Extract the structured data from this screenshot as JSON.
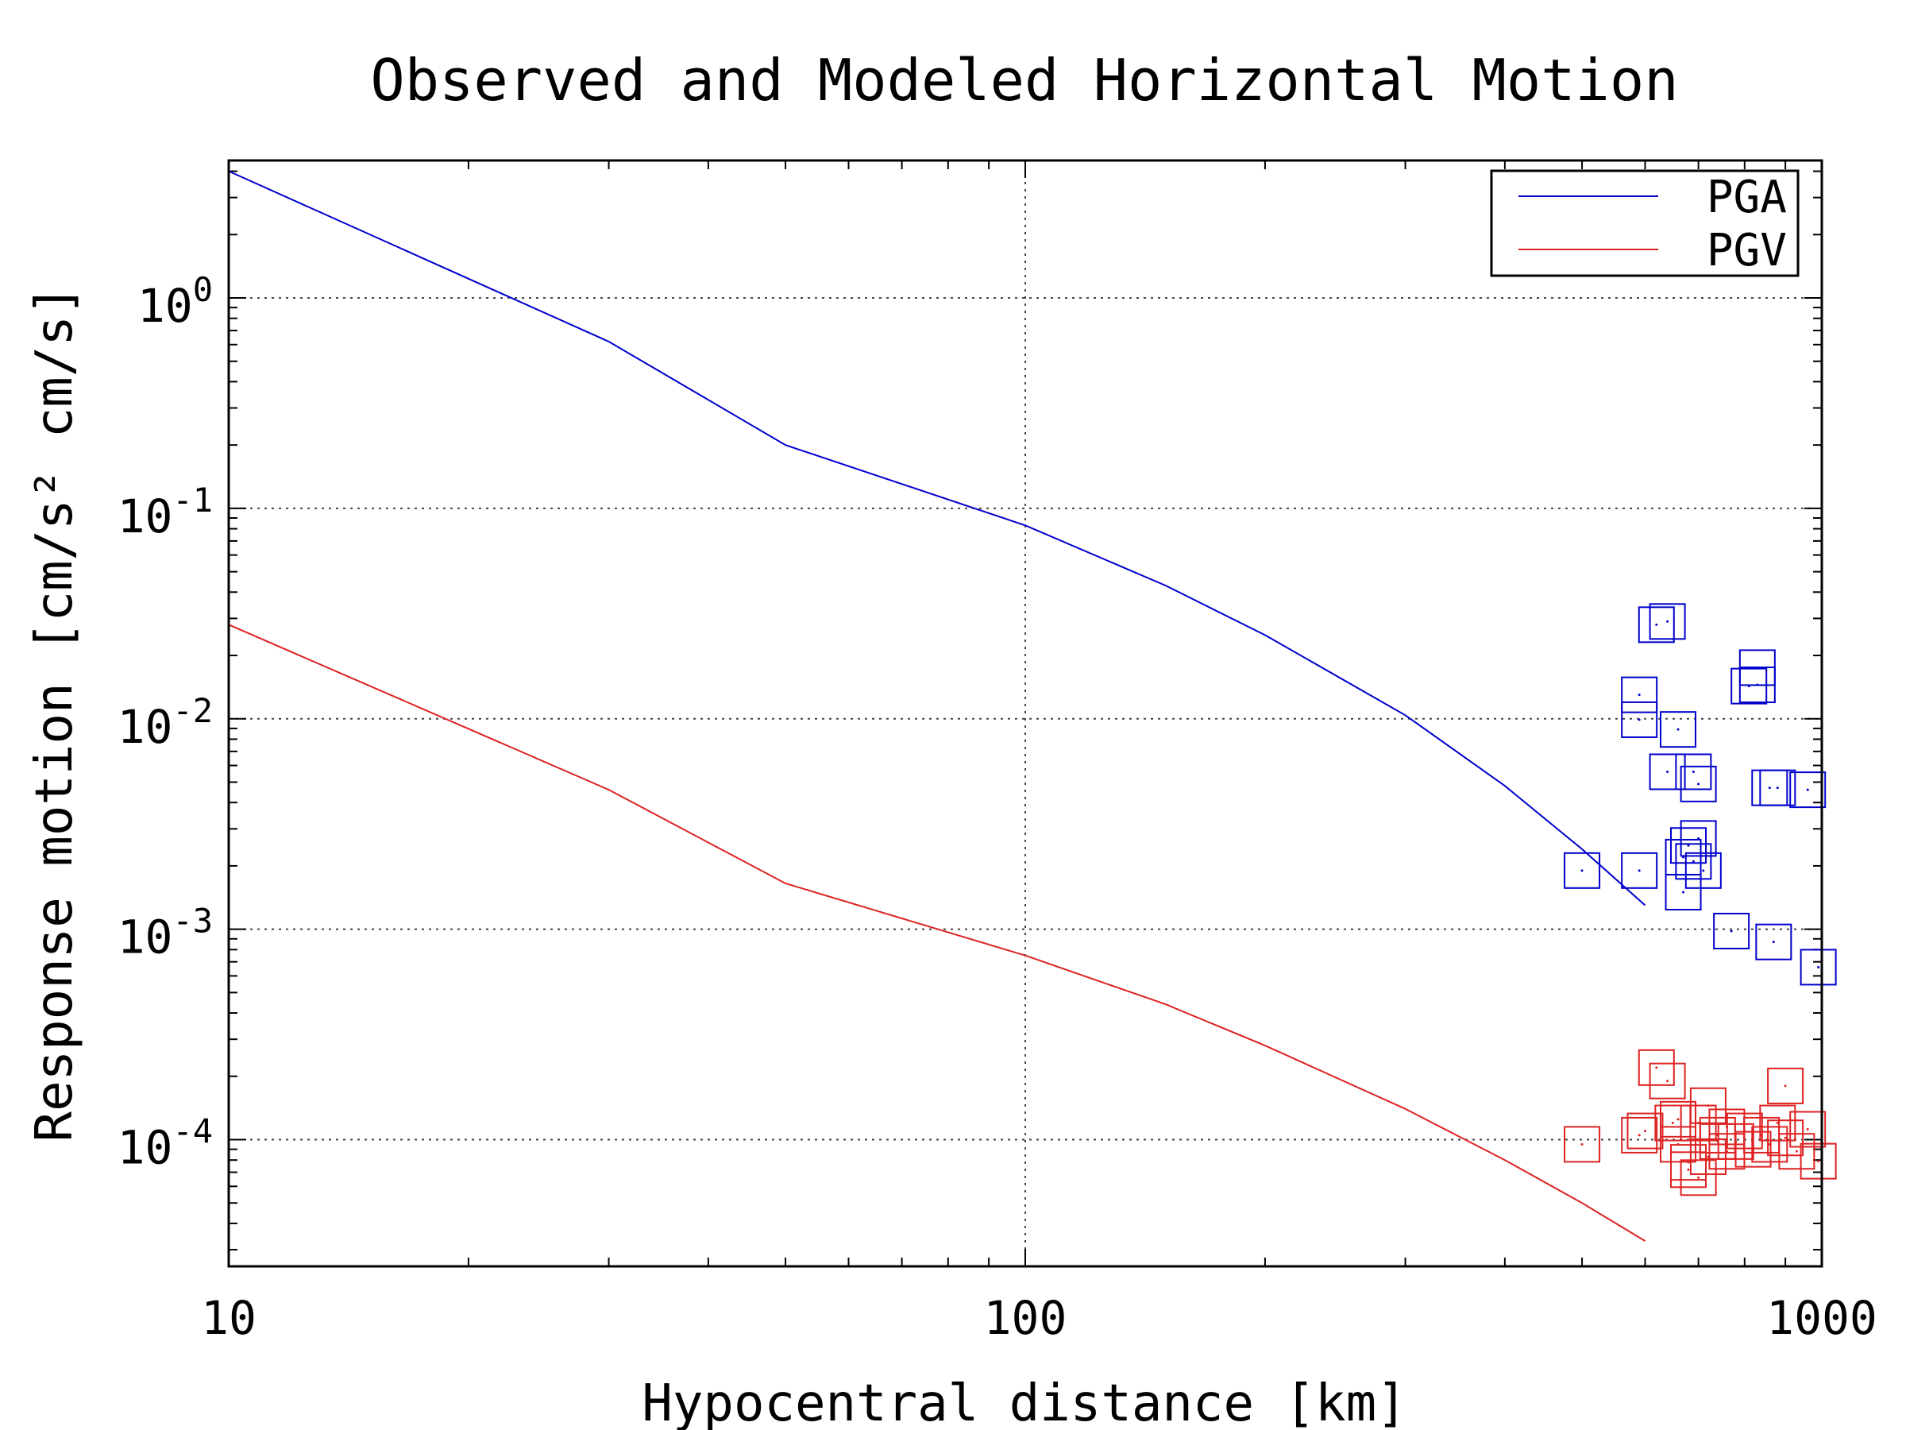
{
  "chart_data": {
    "type": "line",
    "title": "Observed and Modeled Horizontal Motion",
    "xlabel": "Hypocentral distance [km]",
    "ylabel": "Response motion [cm/s² cm/s]",
    "xscale": "log",
    "yscale": "log",
    "xlim": [
      10,
      1000
    ],
    "ylim": [
      2.5e-05,
      4.5
    ],
    "x_ticks": [
      {
        "value": 10,
        "label": "10"
      },
      {
        "value": 100,
        "label": "100"
      },
      {
        "value": 1000,
        "label": "1000"
      }
    ],
    "y_ticks": [
      {
        "value": 1,
        "exp": "0"
      },
      {
        "value": 0.1,
        "exp": "-1"
      },
      {
        "value": 0.01,
        "exp": "-2"
      },
      {
        "value": 0.001,
        "exp": "-3"
      },
      {
        "value": 0.0001,
        "exp": "-4"
      }
    ],
    "y_tick_base": "10",
    "grid": true,
    "legend_position": "top-right",
    "series": [
      {
        "name": "PGA",
        "color": "#0000cc",
        "model": {
          "x": [
            10,
            30,
            50,
            100,
            150,
            200,
            300,
            400,
            500,
            600
          ],
          "y": [
            4.0,
            0.62,
            0.2,
            0.083,
            0.043,
            0.025,
            0.0104,
            0.0048,
            0.0024,
            0.0013
          ]
        },
        "observed": {
          "x": [
            500,
            590,
            620,
            640,
            590,
            590,
            660,
            690,
            810,
            830,
            830,
            640,
            700,
            860,
            880,
            960,
            670,
            680,
            700,
            690,
            710,
            670,
            770,
            870,
            990
          ],
          "y": [
            0.0019,
            0.0019,
            0.028,
            0.029,
            0.013,
            0.0099,
            0.0089,
            0.0056,
            0.0143,
            0.0175,
            0.0145,
            0.0056,
            0.0049,
            0.0047,
            0.0047,
            0.0046,
            0.0022,
            0.0025,
            0.0027,
            0.0021,
            0.0019,
            0.0015,
            0.00098,
            0.00087,
            0.00066
          ]
        }
      },
      {
        "name": "PGV",
        "color": "#dd2222",
        "model": {
          "x": [
            10,
            30,
            50,
            100,
            150,
            200,
            300,
            400,
            500,
            600
          ],
          "y": [
            0.028,
            0.0046,
            0.00165,
            0.00075,
            0.00044,
            0.00028,
            0.00014,
            8e-05,
            5e-05,
            3.3e-05
          ]
        },
        "observed": {
          "x": [
            500,
            590,
            600,
            620,
            650,
            660,
            680,
            700,
            720,
            740,
            760,
            780,
            800,
            820,
            840,
            860,
            880,
            900,
            930,
            960,
            990,
            640,
            660,
            680,
            700,
            720,
            740,
            760,
            900
          ],
          "y": [
            9.5e-05,
            0.000105,
            0.00011,
            0.00022,
            0.00012,
            9.5e-05,
            7.8e-05,
            0.00012,
            0.000145,
            0.000105,
            8.8e-05,
            9.8e-05,
            0.00011,
            9e-05,
            0.000105,
            9.5e-05,
            0.00012,
            0.000102,
            8.8e-05,
            0.000112,
            7.9e-05,
            0.00019,
            0.000125,
            7.2e-05,
            6.6e-05,
            8.3e-05,
            9.8e-05,
            0.000115,
            0.00018
          ]
        }
      }
    ]
  }
}
